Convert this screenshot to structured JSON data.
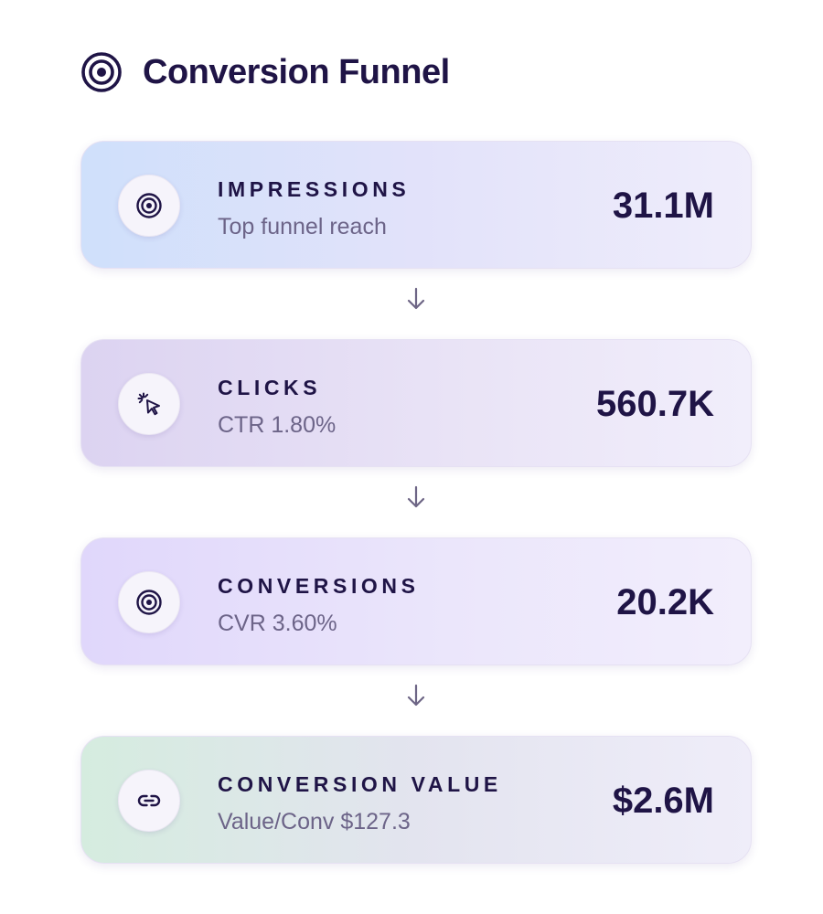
{
  "header": {
    "title": "Conversion Funnel",
    "icon": "target-icon"
  },
  "stages": [
    {
      "label": "IMPRESSIONS",
      "sub": "Top funnel reach",
      "value": "31.1M",
      "icon": "target-icon"
    },
    {
      "label": "CLICKS",
      "sub": "CTR 1.80%",
      "value": "560.7K",
      "icon": "cursor-click-icon"
    },
    {
      "label": "CONVERSIONS",
      "sub": "CVR 3.60%",
      "value": "20.2K",
      "icon": "target-icon"
    },
    {
      "label": "CONVERSION VALUE",
      "sub": "Value/Conv $127.3",
      "value": "$2.6M",
      "icon": "link-icon"
    }
  ],
  "connector_icon": "arrow-down-icon",
  "colors": {
    "text_primary": "#1f1446",
    "text_secondary": "#6c6488",
    "arrow": "#6d6585"
  }
}
